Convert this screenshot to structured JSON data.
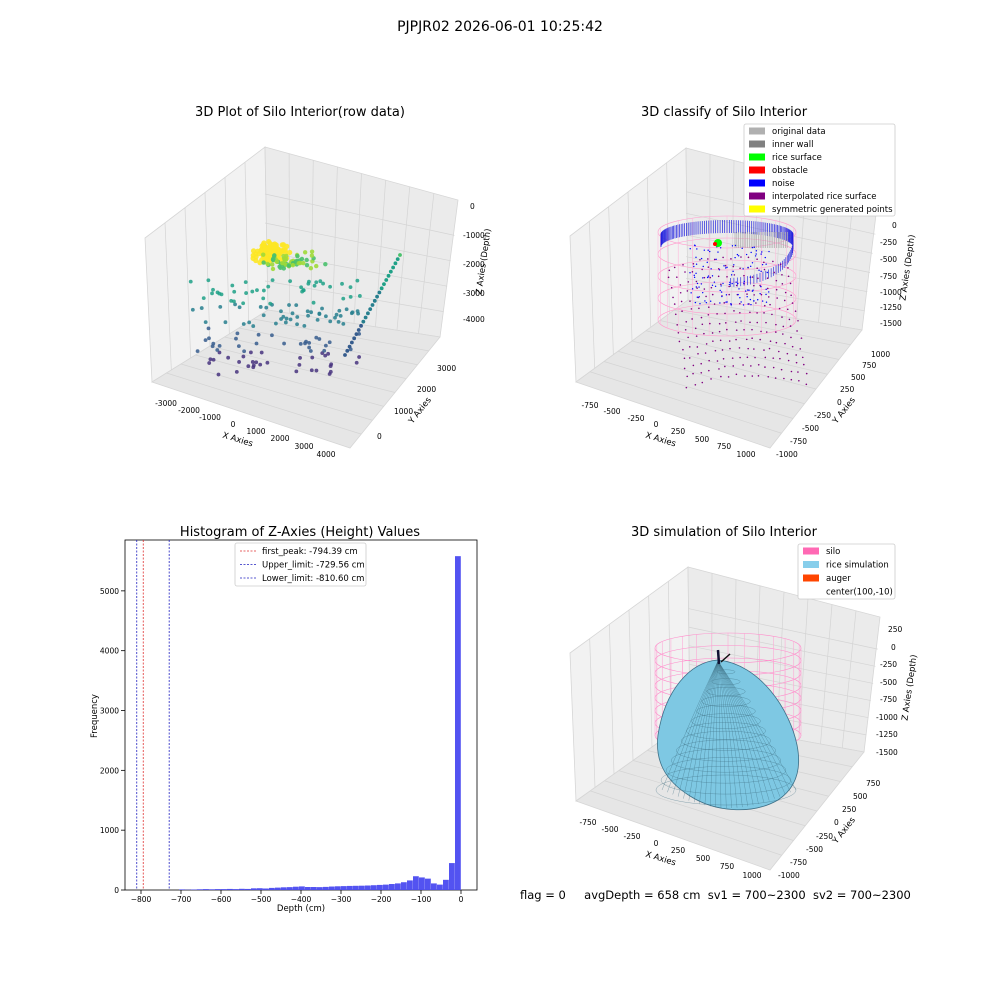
{
  "suptitle": "PJPJR02 2026-06-01 10:25:42",
  "bottom_caption": {
    "flag": "flag = 0",
    "avg": "avgDepth = 658 cm",
    "sv1": "sv1 = 700~2300",
    "sv2": "sv2 = 700~2300"
  },
  "chart_data": [
    {
      "type": "scatter3d",
      "title": "3D Plot of Silo Interior(row data)",
      "xlabel": "X Axies",
      "ylabel": "Y Axies",
      "zlabel": "Z Axies (Depth)",
      "xticks": [
        "-3000",
        "-2000",
        "-1000",
        "0",
        "1000",
        "2000",
        "3000",
        "4000"
      ],
      "yticks": [
        "0",
        "1000",
        "2000",
        "3000"
      ],
      "zticks": [
        "0",
        "-1000",
        "-2000",
        "-3000",
        "-4000"
      ],
      "colormap": "viridis"
    },
    {
      "type": "scatter3d",
      "title": "3D classify of Silo Interior",
      "xlabel": "X Axies",
      "ylabel": "Y Axies",
      "zlabel": "Z Axies (Depth)",
      "xticks": [
        "-750",
        "-500",
        "-250",
        "0",
        "250",
        "500",
        "750",
        "1000"
      ],
      "yticks": [
        "-1000",
        "-750",
        "-500",
        "-250",
        "0",
        "250",
        "500",
        "750",
        "1000"
      ],
      "zticks": [
        "0",
        "-250",
        "-500",
        "-750",
        "-1000",
        "-1250",
        "-1500"
      ],
      "legend_position": "top-right",
      "legend": [
        {
          "label": "original data",
          "color": "#b0b0b0"
        },
        {
          "label": "inner wall",
          "color": "#808080"
        },
        {
          "label": "rice surface",
          "color": "#00ff00"
        },
        {
          "label": "obstacle",
          "color": "#ff0000"
        },
        {
          "label": "noise",
          "color": "#0000ff"
        },
        {
          "label": "interpolated rice surface",
          "color": "#800080"
        },
        {
          "label": "symmetric generated points",
          "color": "#ffff00"
        }
      ]
    },
    {
      "type": "bar",
      "title": "Histogram of Z-Axies (Height) Values",
      "xlabel": "Depth (cm)",
      "ylabel": "Frequency",
      "xlim": [
        -840,
        40
      ],
      "ylim": [
        0,
        5850
      ],
      "xticks": [
        -800,
        -700,
        -600,
        -500,
        -400,
        -300,
        -200,
        -100,
        0
      ],
      "yticks": [
        0,
        1000,
        2000,
        3000,
        4000,
        5000
      ],
      "bin_width": 15,
      "bar_color": "#4a4af0",
      "bins": [
        {
          "x0": -705,
          "v": 10
        },
        {
          "x0": -690,
          "v": 5
        },
        {
          "x0": -675,
          "v": 8
        },
        {
          "x0": -660,
          "v": 12
        },
        {
          "x0": -645,
          "v": 15
        },
        {
          "x0": -630,
          "v": 12
        },
        {
          "x0": -615,
          "v": 15
        },
        {
          "x0": -600,
          "v": 15
        },
        {
          "x0": -585,
          "v": 18
        },
        {
          "x0": -570,
          "v": 15
        },
        {
          "x0": -555,
          "v": 20
        },
        {
          "x0": -540,
          "v": 18
        },
        {
          "x0": -525,
          "v": 28
        },
        {
          "x0": -510,
          "v": 30
        },
        {
          "x0": -495,
          "v": 25
        },
        {
          "x0": -480,
          "v": 35
        },
        {
          "x0": -465,
          "v": 40
        },
        {
          "x0": -450,
          "v": 45
        },
        {
          "x0": -435,
          "v": 48
        },
        {
          "x0": -420,
          "v": 55
        },
        {
          "x0": -405,
          "v": 60
        },
        {
          "x0": -390,
          "v": 50
        },
        {
          "x0": -375,
          "v": 50
        },
        {
          "x0": -360,
          "v": 48
        },
        {
          "x0": -345,
          "v": 52
        },
        {
          "x0": -330,
          "v": 58
        },
        {
          "x0": -315,
          "v": 62
        },
        {
          "x0": -300,
          "v": 65
        },
        {
          "x0": -285,
          "v": 68
        },
        {
          "x0": -270,
          "v": 70
        },
        {
          "x0": -255,
          "v": 72
        },
        {
          "x0": -240,
          "v": 75
        },
        {
          "x0": -225,
          "v": 80
        },
        {
          "x0": -210,
          "v": 85
        },
        {
          "x0": -195,
          "v": 90
        },
        {
          "x0": -180,
          "v": 100
        },
        {
          "x0": -165,
          "v": 110
        },
        {
          "x0": -150,
          "v": 130
        },
        {
          "x0": -135,
          "v": 160
        },
        {
          "x0": -120,
          "v": 230
        },
        {
          "x0": -105,
          "v": 210
        },
        {
          "x0": -90,
          "v": 190
        },
        {
          "x0": -75,
          "v": 110
        },
        {
          "x0": -60,
          "v": 90
        },
        {
          "x0": -45,
          "v": 170
        },
        {
          "x0": -30,
          "v": 450
        },
        {
          "x0": -15,
          "v": 5580
        }
      ],
      "vlines": [
        {
          "x": -794.39,
          "label": "first_peak: -794.39 cm",
          "color": "#e03030"
        },
        {
          "x": -729.56,
          "label": "Upper_limit: -729.56 cm",
          "color": "#2020c0"
        },
        {
          "x": -810.6,
          "label": "Lower_limit: -810.60 cm",
          "color": "#2020c0"
        }
      ],
      "legend_position": "top-center"
    },
    {
      "type": "surface3d",
      "title": "3D simulation of Silo Interior",
      "xlabel": "X Axies",
      "ylabel": "Y Axies",
      "zlabel": "Z Axies (Depth)",
      "xticks": [
        "-750",
        "-500",
        "-250",
        "0",
        "250",
        "500",
        "750",
        "1000"
      ],
      "yticks": [
        "-1000",
        "-750",
        "-500",
        "-250",
        "0",
        "250",
        "500",
        "750"
      ],
      "zticks": [
        "250",
        "0",
        "-250",
        "-500",
        "-750",
        "-1000",
        "-1250",
        "-1500"
      ],
      "legend_position": "top-right",
      "legend": [
        {
          "label": "silo",
          "color": "#ff69b4"
        },
        {
          "label": "rice simulation",
          "color": "#87ceeb"
        },
        {
          "label": "auger",
          "color": "#ff4500"
        },
        {
          "label": "center(100,-10)",
          "color": "none"
        }
      ]
    }
  ]
}
